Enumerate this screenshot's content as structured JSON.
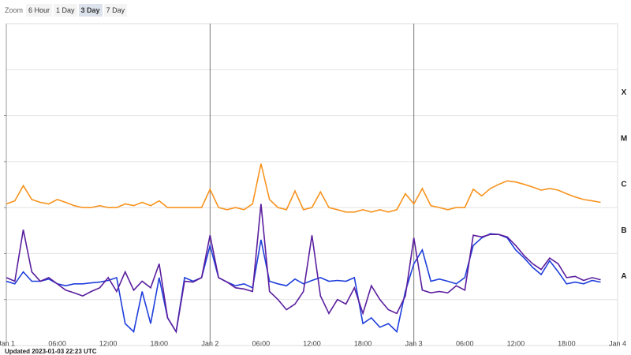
{
  "zoom": {
    "label": "Zoom",
    "buttons": [
      "6 Hour",
      "1 Day",
      "3 Day",
      "7 Day"
    ],
    "selected": 2
  },
  "updated": "Updated 2023-01-03 22:23 UTC",
  "chart_data": {
    "type": "line",
    "log_scale": true,
    "xlim": [
      "2023-01-01T00:00",
      "2023-01-04T00:00"
    ],
    "xticks": [
      {
        "value": "2023-01-01T00:00",
        "label": "Jan 1"
      },
      {
        "value": "2023-01-01T06:00",
        "label": "06:00"
      },
      {
        "value": "2023-01-01T12:00",
        "label": "12:00"
      },
      {
        "value": "2023-01-01T18:00",
        "label": "18:00"
      },
      {
        "value": "2023-01-02T00:00",
        "label": "Jan 2"
      },
      {
        "value": "2023-01-02T06:00",
        "label": "06:00"
      },
      {
        "value": "2023-01-02T12:00",
        "label": "12:00"
      },
      {
        "value": "2023-01-02T18:00",
        "label": "18:00"
      },
      {
        "value": "2023-01-03T00:00",
        "label": "Jan 3"
      },
      {
        "value": "2023-01-03T06:00",
        "label": "06:00"
      },
      {
        "value": "2023-01-03T12:00",
        "label": "12:00"
      },
      {
        "value": "2023-01-03T18:00",
        "label": "18:00"
      },
      {
        "value": "2023-01-04T00:00",
        "label": "Jan 4"
      }
    ],
    "ylim": [
      1e-09,
      0.01
    ],
    "flare_classes": [
      {
        "label": "A",
        "from": 1e-08,
        "to": 1e-07
      },
      {
        "label": "B",
        "from": 1e-07,
        "to": 1e-06
      },
      {
        "label": "C",
        "from": 1e-06,
        "to": 1e-05
      },
      {
        "label": "M",
        "from": 1e-05,
        "to": 0.0001
      },
      {
        "label": "X",
        "from": 0.0001,
        "to": 0.001
      }
    ],
    "x": [
      "2023-01-01T00:00",
      "2023-01-01T01:00",
      "2023-01-01T02:00",
      "2023-01-01T03:00",
      "2023-01-01T04:00",
      "2023-01-01T05:00",
      "2023-01-01T06:00",
      "2023-01-01T07:00",
      "2023-01-01T08:00",
      "2023-01-01T09:00",
      "2023-01-01T10:00",
      "2023-01-01T11:00",
      "2023-01-01T12:00",
      "2023-01-01T13:00",
      "2023-01-01T14:00",
      "2023-01-01T15:00",
      "2023-01-01T16:00",
      "2023-01-01T17:00",
      "2023-01-01T18:00",
      "2023-01-01T19:00",
      "2023-01-01T20:00",
      "2023-01-01T21:00",
      "2023-01-01T22:00",
      "2023-01-01T23:00",
      "2023-01-02T00:00",
      "2023-01-02T01:00",
      "2023-01-02T02:00",
      "2023-01-02T03:00",
      "2023-01-02T04:00",
      "2023-01-02T05:00",
      "2023-01-02T06:00",
      "2023-01-02T07:00",
      "2023-01-02T08:00",
      "2023-01-02T09:00",
      "2023-01-02T10:00",
      "2023-01-02T11:00",
      "2023-01-02T12:00",
      "2023-01-02T13:00",
      "2023-01-02T14:00",
      "2023-01-02T15:00",
      "2023-01-02T16:00",
      "2023-01-02T17:00",
      "2023-01-02T18:00",
      "2023-01-02T19:00",
      "2023-01-02T20:00",
      "2023-01-02T21:00",
      "2023-01-02T22:00",
      "2023-01-02T23:00",
      "2023-01-03T00:00",
      "2023-01-03T01:00",
      "2023-01-03T02:00",
      "2023-01-03T03:00",
      "2023-01-03T04:00",
      "2023-01-03T05:00",
      "2023-01-03T06:00",
      "2023-01-03T07:00",
      "2023-01-03T08:00",
      "2023-01-03T09:00",
      "2023-01-03T10:00",
      "2023-01-03T11:00",
      "2023-01-03T12:00",
      "2023-01-03T13:00",
      "2023-01-03T14:00",
      "2023-01-03T15:00",
      "2023-01-03T16:00",
      "2023-01-03T17:00",
      "2023-01-03T18:00",
      "2023-01-03T19:00",
      "2023-01-03T20:00",
      "2023-01-03T21:00",
      "2023-01-03T22:00"
    ],
    "series": [
      {
        "color": "#f7931e",
        "values": [
          1.2e-06,
          1.4e-06,
          3e-06,
          1.5e-06,
          1.3e-06,
          1.2e-06,
          1.5e-06,
          1.3e-06,
          1.1e-06,
          1e-06,
          1e-06,
          1.1e-06,
          1e-06,
          1e-06,
          1.2e-06,
          1.1e-06,
          1.3e-06,
          1.1e-06,
          1.4e-06,
          1e-06,
          1e-06,
          1e-06,
          1e-06,
          1e-06,
          2.5e-06,
          1e-06,
          9e-07,
          1e-06,
          9e-07,
          1.2e-06,
          9e-06,
          1.5e-06,
          1e-06,
          9e-07,
          2.3e-06,
          9e-07,
          1e-06,
          2.2e-06,
          1e-06,
          9e-07,
          8e-07,
          8e-07,
          9e-07,
          8e-07,
          9e-07,
          8e-07,
          9e-07,
          2e-06,
          1.2e-06,
          2.6e-06,
          1.1e-06,
          1e-06,
          9e-07,
          1e-06,
          1e-06,
          2.5e-06,
          1.8e-06,
          2.6e-06,
          3.2e-06,
          3.8e-06,
          3.6e-06,
          3.2e-06,
          2.8e-06,
          2.4e-06,
          2.6e-06,
          2.4e-06,
          2e-06,
          1.7e-06,
          1.5e-06,
          1.4e-06,
          1.3e-06
        ]
      },
      {
        "color": "#1f3fdb",
        "values": [
          2.5e-08,
          2.2e-08,
          4e-08,
          2.5e-08,
          2.5e-08,
          2.8e-08,
          2.2e-08,
          2e-08,
          2.2e-08,
          2.2e-08,
          2.3e-08,
          2.4e-08,
          2.6e-08,
          3e-08,
          3e-09,
          2e-09,
          1.5e-08,
          3e-09,
          3e-08,
          4e-09,
          2e-09,
          3e-08,
          2.5e-08,
          3e-08,
          1.5e-07,
          3e-08,
          2.4e-08,
          2e-08,
          2.2e-08,
          1.8e-08,
          2e-07,
          2.5e-08,
          2.2e-08,
          2e-08,
          2.8e-08,
          2.2e-08,
          2.6e-08,
          3e-08,
          2.5e-08,
          2.6e-08,
          2.5e-08,
          3e-08,
          3e-09,
          4e-09,
          2.5e-09,
          3e-09,
          2e-09,
          1.5e-08,
          6e-08,
          1.2e-07,
          2.5e-08,
          2.8e-08,
          2.5e-08,
          2.2e-08,
          3e-08,
          1.5e-07,
          2.2e-07,
          2.7e-07,
          2.6e-07,
          2.2e-07,
          1.2e-07,
          8e-08,
          5e-08,
          3.5e-08,
          7e-08,
          4e-08,
          2.2e-08,
          2.4e-08,
          2.2e-08,
          2.6e-08,
          2.4e-08
        ]
      },
      {
        "color": "#5a1e9e",
        "values": [
          3e-08,
          2.5e-08,
          3.3e-07,
          4e-08,
          2.5e-08,
          3e-08,
          2.2e-08,
          1.6e-08,
          1.4e-08,
          1.2e-08,
          1.5e-08,
          1.8e-08,
          3e-08,
          1.5e-08,
          4e-08,
          1.6e-08,
          2.5e-08,
          1.8e-08,
          6e-08,
          4e-09,
          2e-09,
          2.5e-08,
          2.4e-08,
          3e-08,
          2.5e-07,
          3e-08,
          2.4e-08,
          1.8e-08,
          1.7e-08,
          1.5e-08,
          1.2e-06,
          1.5e-08,
          1e-08,
          6e-09,
          8e-09,
          1.5e-08,
          2.5e-07,
          1.2e-08,
          5e-09,
          1e-08,
          8e-09,
          1.8e-08,
          5e-09,
          2e-08,
          1e-08,
          6e-09,
          5e-09,
          1.2e-08,
          2.2e-07,
          1.6e-08,
          1.4e-08,
          1.5e-08,
          1.4e-08,
          2e-08,
          1.6e-08,
          2.5e-07,
          2.3e-07,
          2.6e-07,
          2.6e-07,
          2.3e-07,
          1.5e-07,
          9e-08,
          6e-08,
          4.5e-08,
          8e-08,
          6e-08,
          3e-08,
          3.2e-08,
          2.6e-08,
          3e-08,
          2.7e-08
        ]
      }
    ]
  }
}
